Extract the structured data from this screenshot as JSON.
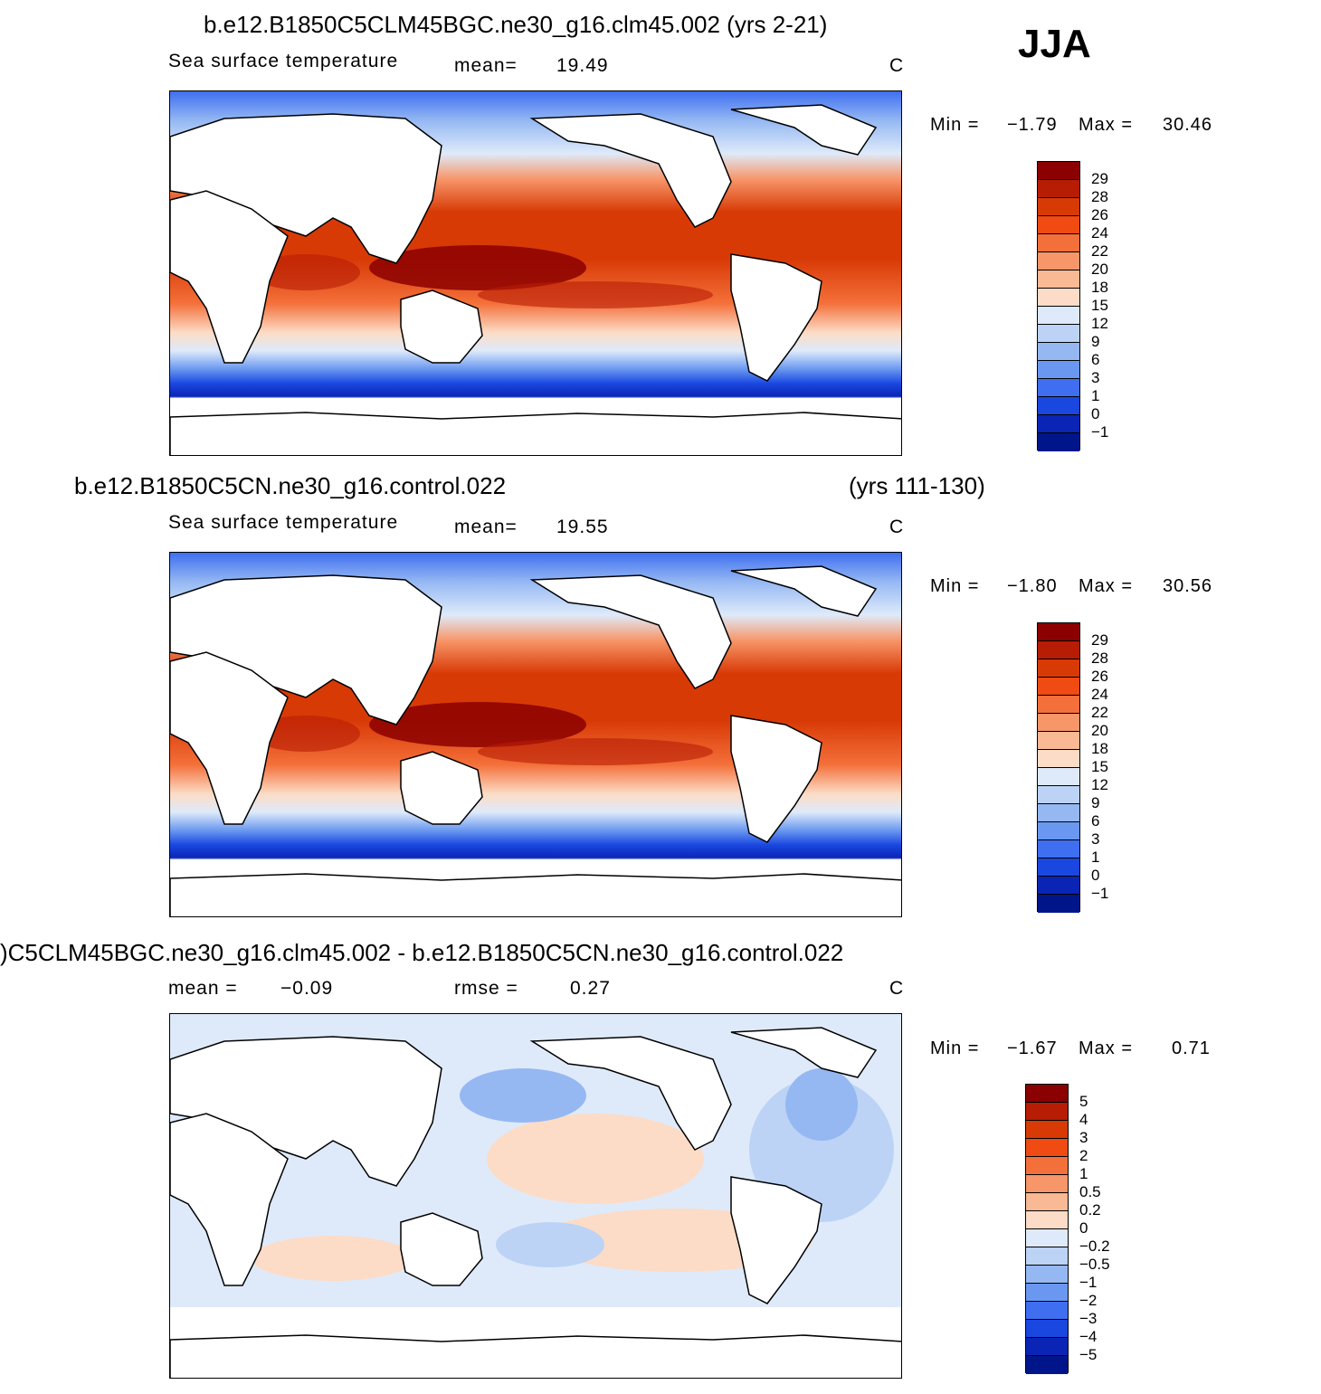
{
  "season": "JJA",
  "panel_top": {
    "title": "b.e12.B1850C5CLM45BGC.ne30_g16.clm45.002 (yrs 2-21)",
    "variable": "Sea surface temperature",
    "mean_label": "mean=",
    "mean_value": "19.49",
    "units": "C",
    "min_label": "Min =",
    "min_value": "−1.79",
    "max_label": "Max =",
    "max_value": "30.46"
  },
  "panel_mid": {
    "title": "b.e12.B1850C5CN.ne30_g16.control.022",
    "years": "(yrs 111-130)",
    "variable": "Sea surface temperature",
    "mean_label": "mean=",
    "mean_value": "19.55",
    "units": "C",
    "min_label": "Min =",
    "min_value": "−1.80",
    "max_label": "Max =",
    "max_value": "30.56"
  },
  "panel_diff": {
    "title": ")C5CLM45BGC.ne30_g16.clm45.002 - b.e12.B1850C5CN.ne30_g16.control.022",
    "mean_label": "mean =",
    "mean_value": "−0.09",
    "rmse_label": "rmse =",
    "rmse_value": "0.27",
    "units": "C",
    "min_label": "Min =",
    "min_value": "−1.67",
    "max_label": "Max =",
    "max_value": "0.71"
  },
  "colorbar_sst": {
    "labels": [
      "29",
      "28",
      "26",
      "24",
      "22",
      "20",
      "18",
      "15",
      "12",
      "9",
      "6",
      "3",
      "1",
      "0",
      "−1"
    ],
    "colors": [
      "#8b0000",
      "#b71c05",
      "#d83a06",
      "#ef4b12",
      "#f4703a",
      "#f79669",
      "#f9b995",
      "#fcdcc6",
      "#deeafa",
      "#bcd3f6",
      "#95b8f3",
      "#6a98f0",
      "#3f6ff0",
      "#1a47e0",
      "#0a25b5",
      "#00158a"
    ]
  },
  "colorbar_diff": {
    "labels": [
      "5",
      "4",
      "3",
      "2",
      "1",
      "0.5",
      "0.2",
      "0",
      "−0.2",
      "−0.5",
      "−1",
      "−2",
      "−3",
      "−4",
      "−5"
    ],
    "colors": [
      "#8b0000",
      "#b71c05",
      "#d83a06",
      "#ef4b12",
      "#f4703a",
      "#f79669",
      "#f9b995",
      "#fcdcc6",
      "#deeafa",
      "#bcd3f6",
      "#95b8f3",
      "#6a98f0",
      "#3f6ff0",
      "#1a47e0",
      "#0a25b5",
      "#00158a"
    ]
  }
}
